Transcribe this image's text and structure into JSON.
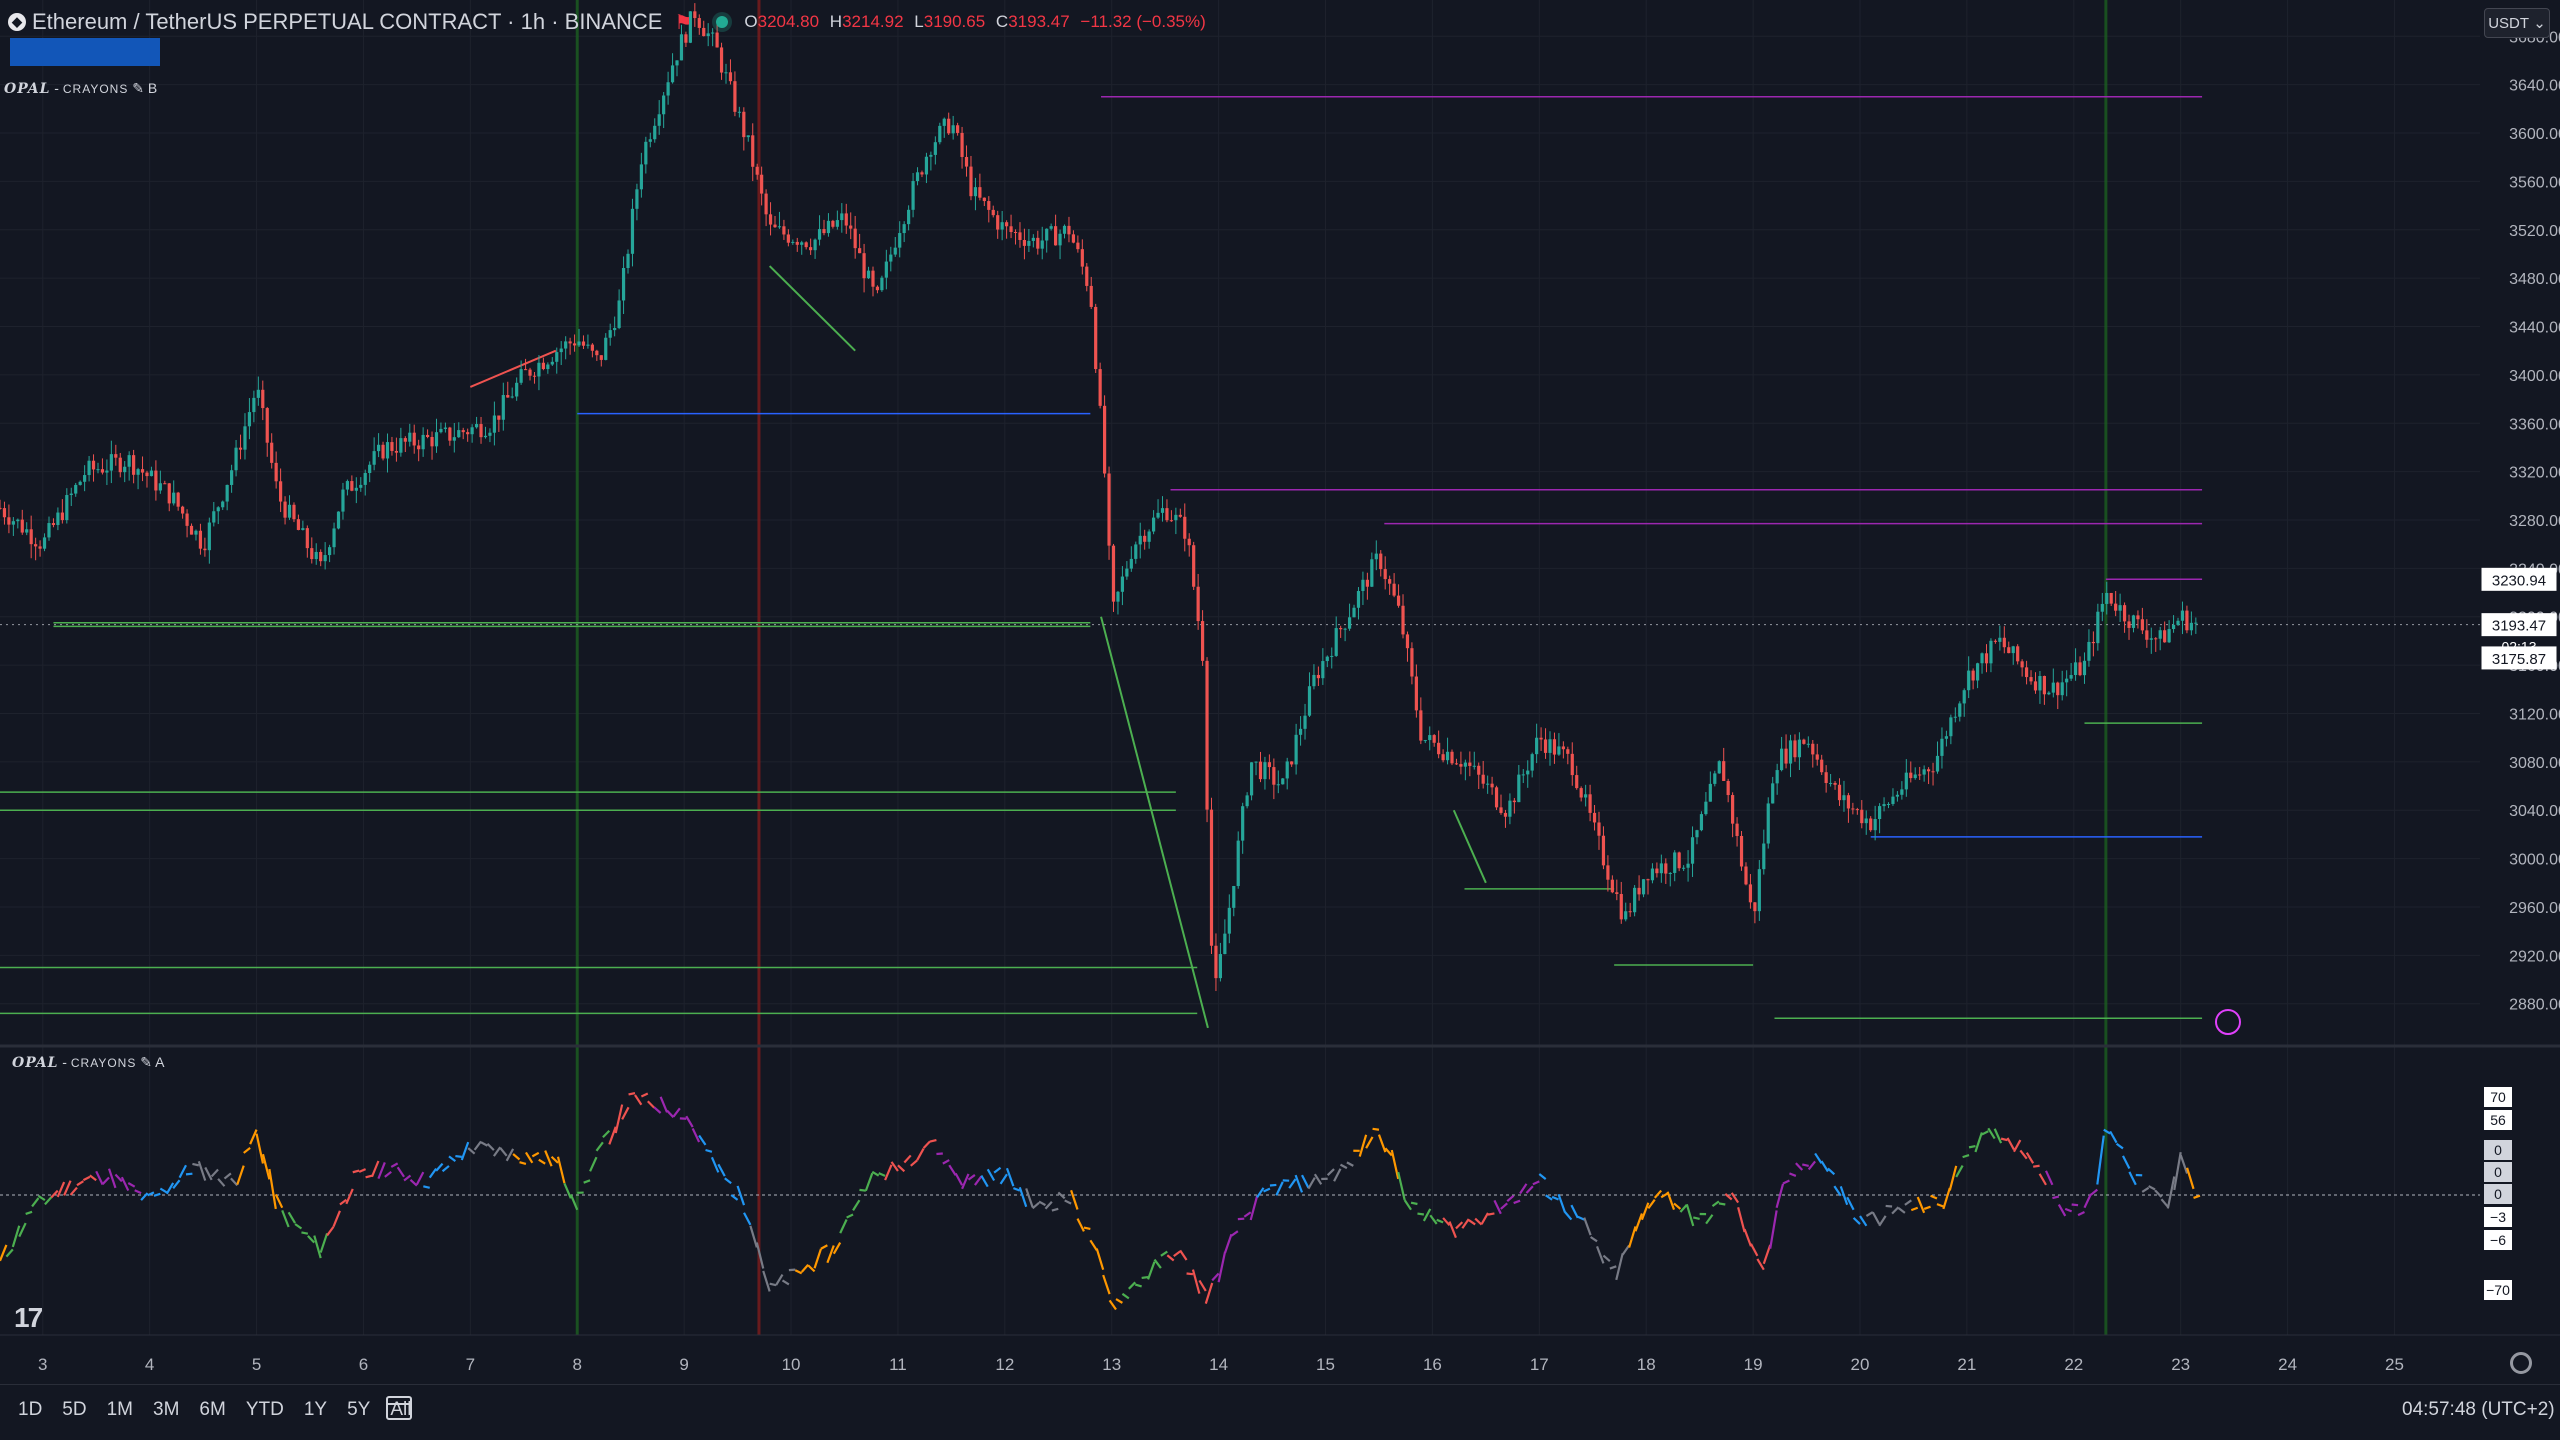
{
  "header": {
    "symbol": "Ethereum / TetherUS PERPETUAL CONTRACT",
    "interval": "1h",
    "exchange": "BINANCE",
    "title": "Ethereum / TetherUS PERPETUAL CONTRACT · 1h · BINANCE",
    "ohlc": {
      "o": "3204.80",
      "h": "3214.92",
      "l": "3190.65",
      "c": "3193.47",
      "change": "−11.32 (−0.35%)"
    }
  },
  "currency_button": "USDT",
  "indicator_main": {
    "name": "OPAL",
    "sub": "CRAYONS",
    "suffix": "B"
  },
  "indicator_osc": {
    "name": "OPAL",
    "sub": "CRAYONS",
    "suffix": "A"
  },
  "price_labels": {
    "level_high": "3230.94",
    "last": "3193.47",
    "countdown": "02:13",
    "level_low": "3175.87"
  },
  "osc_labels": [
    "70",
    "56",
    "0",
    "0",
    "0",
    "−3",
    "−6",
    "−70"
  ],
  "timeframes": [
    "1D",
    "5D",
    "1M",
    "3M",
    "6M",
    "YTD",
    "1Y",
    "5Y",
    "All"
  ],
  "clock": "04:57:48 (UTC+2)",
  "colors": {
    "up": "#26a69a",
    "down": "#ef5350",
    "bg": "#131722",
    "grid": "#1e222d",
    "purple": "#9c27b0",
    "green_line": "#4caf50",
    "blue_line": "#2962ff"
  },
  "chart_data": {
    "type": "candlestick",
    "title": "Ethereum / TetherUS PERPETUAL CONTRACT · 1h · BINANCE",
    "x_ticks": [
      "3",
      "4",
      "5",
      "6",
      "7",
      "8",
      "9",
      "10",
      "11",
      "12",
      "13",
      "14",
      "15",
      "16",
      "17",
      "18",
      "19",
      "20",
      "21",
      "22",
      "23",
      "24",
      "25"
    ],
    "y_ticks": [
      2880,
      2920,
      2960,
      3000,
      3040,
      3080,
      3120,
      3160,
      3200,
      3240,
      3280,
      3320,
      3360,
      3400,
      3440,
      3480,
      3520,
      3560,
      3600,
      3640,
      3680
    ],
    "ylim": [
      2850,
      3710
    ],
    "xlim": [
      2.6,
      25.8
    ],
    "last_price": 3193.47,
    "path": [
      [
        2.6,
        3290
      ],
      [
        3.0,
        3260
      ],
      [
        3.4,
        3320
      ],
      [
        3.8,
        3330
      ],
      [
        4.2,
        3300
      ],
      [
        4.5,
        3260
      ],
      [
        4.8,
        3330
      ],
      [
        5.0,
        3390
      ],
      [
        5.2,
        3300
      ],
      [
        5.6,
        3240
      ],
      [
        5.8,
        3300
      ],
      [
        6.2,
        3340
      ],
      [
        6.8,
        3350
      ],
      [
        7.2,
        3360
      ],
      [
        7.5,
        3400
      ],
      [
        7.8,
        3420
      ],
      [
        8.0,
        3430
      ],
      [
        8.2,
        3410
      ],
      [
        8.4,
        3460
      ],
      [
        8.6,
        3580
      ],
      [
        8.9,
        3660
      ],
      [
        9.1,
        3700
      ],
      [
        9.3,
        3670
      ],
      [
        9.6,
        3590
      ],
      [
        9.8,
        3520
      ],
      [
        10.2,
        3510
      ],
      [
        10.5,
        3530
      ],
      [
        10.8,
        3460
      ],
      [
        11.0,
        3520
      ],
      [
        11.3,
        3590
      ],
      [
        11.5,
        3610
      ],
      [
        11.7,
        3550
      ],
      [
        12.0,
        3520
      ],
      [
        12.3,
        3510
      ],
      [
        12.6,
        3520
      ],
      [
        12.8,
        3470
      ],
      [
        12.95,
        3300
      ],
      [
        13.0,
        3200
      ],
      [
        13.2,
        3260
      ],
      [
        13.5,
        3290
      ],
      [
        13.7,
        3270
      ],
      [
        13.85,
        3170
      ],
      [
        13.95,
        2880
      ],
      [
        14.1,
        2960
      ],
      [
        14.3,
        3080
      ],
      [
        14.6,
        3060
      ],
      [
        14.9,
        3150
      ],
      [
        15.2,
        3200
      ],
      [
        15.5,
        3250
      ],
      [
        15.7,
        3200
      ],
      [
        15.9,
        3100
      ],
      [
        16.3,
        3080
      ],
      [
        16.7,
        3040
      ],
      [
        17.0,
        3100
      ],
      [
        17.3,
        3080
      ],
      [
        17.6,
        3000
      ],
      [
        17.8,
        2950
      ],
      [
        18.0,
        2990
      ],
      [
        18.4,
        3000
      ],
      [
        18.7,
        3080
      ],
      [
        19.0,
        2950
      ],
      [
        19.2,
        3080
      ],
      [
        19.5,
        3100
      ],
      [
        19.8,
        3050
      ],
      [
        20.1,
        3030
      ],
      [
        20.4,
        3060
      ],
      [
        20.7,
        3080
      ],
      [
        21.0,
        3150
      ],
      [
        21.3,
        3180
      ],
      [
        21.6,
        3150
      ],
      [
        21.8,
        3140
      ],
      [
        22.1,
        3160
      ],
      [
        22.3,
        3220
      ],
      [
        22.5,
        3200
      ],
      [
        22.8,
        3180
      ],
      [
        23.0,
        3200
      ],
      [
        23.15,
        3193
      ]
    ],
    "levels": [
      {
        "x1": 12.9,
        "x2": 23.2,
        "y": 3630,
        "color": "purple"
      },
      {
        "x1": 13.55,
        "x2": 23.2,
        "y": 3305,
        "color": "purple"
      },
      {
        "x1": 15.55,
        "x2": 23.2,
        "y": 3277,
        "color": "purple"
      },
      {
        "x1": 22.3,
        "x2": 23.2,
        "y": 3231,
        "color": "purple"
      },
      {
        "x1": 3.1,
        "x2": 12.8,
        "y": 3195,
        "color": "green_line"
      },
      {
        "x1": 3.1,
        "x2": 12.8,
        "y": 3192,
        "color": "green_line"
      },
      {
        "x1": 2.6,
        "x2": 13.6,
        "y": 3055,
        "color": "green_line"
      },
      {
        "x1": 2.6,
        "x2": 13.6,
        "y": 3040,
        "color": "green_line"
      },
      {
        "x1": 2.6,
        "x2": 13.8,
        "y": 2910,
        "color": "green_line"
      },
      {
        "x1": 2.6,
        "x2": 13.8,
        "y": 2872,
        "color": "green_line"
      },
      {
        "x1": 19.2,
        "x2": 23.2,
        "y": 2868,
        "color": "green_line"
      },
      {
        "x1": 8.0,
        "x2": 12.8,
        "y": 3368,
        "color": "blue_line"
      },
      {
        "x1": 20.1,
        "x2": 23.2,
        "y": 3018,
        "color": "blue_line"
      },
      {
        "x1": 22.1,
        "x2": 23.2,
        "y": 3112,
        "color": "green_line"
      },
      {
        "x1": 16.3,
        "x2": 17.7,
        "y": 2975,
        "color": "green_line"
      },
      {
        "x1": 17.7,
        "x2": 19.0,
        "y": 2912,
        "color": "green_line"
      }
    ],
    "oscillator": {
      "ylim": [
        -80,
        80
      ],
      "path": [
        [
          2.6,
          -50
        ],
        [
          2.9,
          -10
        ],
        [
          3.2,
          5
        ],
        [
          3.6,
          15
        ],
        [
          4.0,
          -5
        ],
        [
          4.4,
          20
        ],
        [
          4.8,
          10
        ],
        [
          5.0,
          45
        ],
        [
          5.2,
          -10
        ],
        [
          5.6,
          -40
        ],
        [
          5.9,
          10
        ],
        [
          6.2,
          20
        ],
        [
          6.6,
          10
        ],
        [
          7.0,
          35
        ],
        [
          7.4,
          30
        ],
        [
          7.8,
          25
        ],
        [
          8.0,
          -5
        ],
        [
          8.2,
          30
        ],
        [
          8.5,
          70
        ],
        [
          8.8,
          65
        ],
        [
          9.0,
          60
        ],
        [
          9.3,
          20
        ],
        [
          9.6,
          -10
        ],
        [
          9.8,
          -70
        ],
        [
          10.1,
          -55
        ],
        [
          10.4,
          -40
        ],
        [
          10.7,
          10
        ],
        [
          11.0,
          20
        ],
        [
          11.3,
          40
        ],
        [
          11.6,
          10
        ],
        [
          12.0,
          15
        ],
        [
          12.3,
          -10
        ],
        [
          12.6,
          0
        ],
        [
          12.8,
          -30
        ],
        [
          13.0,
          -80
        ],
        [
          13.3,
          -60
        ],
        [
          13.6,
          -40
        ],
        [
          13.9,
          -75
        ],
        [
          14.2,
          -20
        ],
        [
          14.5,
          5
        ],
        [
          14.9,
          10
        ],
        [
          15.2,
          20
        ],
        [
          15.5,
          50
        ],
        [
          15.8,
          -10
        ],
        [
          16.2,
          -25
        ],
        [
          16.6,
          -10
        ],
        [
          17.0,
          10
        ],
        [
          17.4,
          -20
        ],
        [
          17.7,
          -60
        ],
        [
          18.1,
          5
        ],
        [
          18.5,
          -20
        ],
        [
          18.8,
          0
        ],
        [
          19.1,
          -55
        ],
        [
          19.3,
          10
        ],
        [
          19.6,
          30
        ],
        [
          20.0,
          -20
        ],
        [
          20.4,
          -10
        ],
        [
          20.8,
          -5
        ],
        [
          21.0,
          35
        ],
        [
          21.3,
          45
        ],
        [
          21.6,
          30
        ],
        [
          21.9,
          -10
        ],
        [
          22.2,
          -5
        ],
        [
          22.3,
          55
        ],
        [
          22.6,
          10
        ],
        [
          22.9,
          -10
        ],
        [
          23.0,
          35
        ],
        [
          23.15,
          -5
        ]
      ]
    }
  }
}
